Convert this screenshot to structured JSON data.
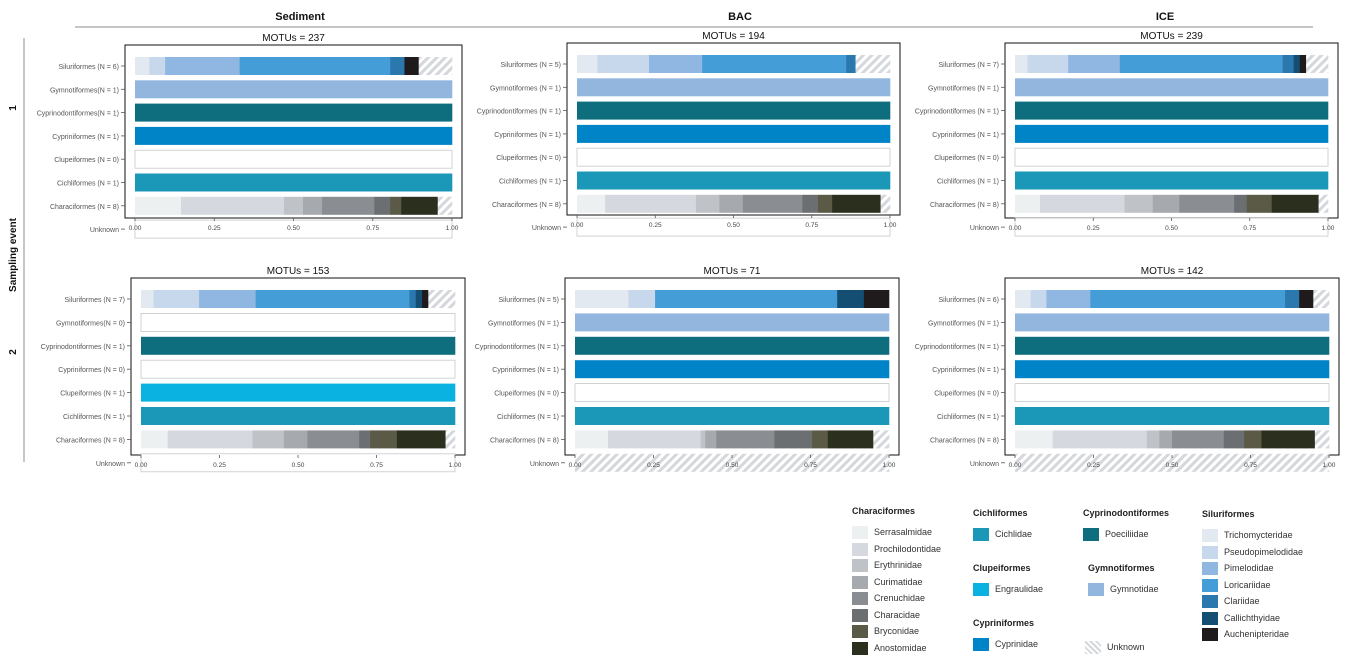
{
  "colors": {
    "Serrasalmidae": "#edf0f1",
    "Prochilodontidae": "#d5d8de",
    "Erythrinidae": "#bfc2c7",
    "Curimatidae": "#a6a9ae",
    "Crenuchidae": "#8a8d91",
    "Characidae": "#6c6f71",
    "Bryconidae": "#5a5a46",
    "Anostomidae": "#2b2f1d",
    "Cichlidae": "#1b98b8",
    "Poeciliidae": "#0e6e7e",
    "Engraulidae": "#0ab2e2",
    "Gymnotidae": "#93b6de",
    "Cyprinidae": "#0084c8",
    "Trichomycteridae": "#e3e9f1",
    "Pseudopimelodidae": "#c7d8ec",
    "Pimelodidae": "#8fb7e2",
    "Loricariidae": "#449dd7",
    "Clariidae": "#2a78ae",
    "Callichthyidae": "#144e72",
    "Auchenipteridae": "#1f1b1c",
    "Unknown": "hatch"
  },
  "chart_data": {
    "type": "bar",
    "orientation": "horizontal",
    "stacked": true,
    "column_headers": [
      "Sediment",
      "BAC",
      "ICE"
    ],
    "row_axis_title": "Sampling event",
    "row_labels": [
      "1",
      "2"
    ],
    "x_ticks": [
      "0.00",
      "0.25",
      "0.50",
      "0.75",
      "1.00"
    ],
    "xlim": [
      0,
      1
    ],
    "panels": [
      {
        "row": "1",
        "column": "Sediment",
        "motu_label": "MOTUs = 237",
        "bars": [
          {
            "label": "Siluriformes (N = 6)",
            "segments": [
              [
                "Trichomycteridae",
                0.045
              ],
              [
                "Pseudopimelodidae",
                0.05
              ],
              [
                "Pimelodidae",
                0.235
              ],
              [
                "Loricariidae",
                0.475
              ],
              [
                "Clariidae",
                0.045
              ],
              [
                "Auchenipteridae",
                0.045
              ],
              [
                "Unknown",
                0.105
              ]
            ]
          },
          {
            "label": "Gymnotiformes(N = 1)",
            "segments": [
              [
                "Gymnotidae",
                1.0
              ]
            ]
          },
          {
            "label": "Cyprinodontiformes(N = 1)",
            "segments": [
              [
                "Poeciliidae",
                1.0
              ]
            ]
          },
          {
            "label": "Cypriniformes (N = 1)",
            "segments": [
              [
                "Cyprinidae",
                1.0
              ]
            ]
          },
          {
            "label": "Clupeiformes (N = 0)",
            "segments": []
          },
          {
            "label": "Cichliformes (N = 1)",
            "segments": [
              [
                "Cichlidae",
                1.0
              ]
            ]
          },
          {
            "label": "Characiformes (N = 8)",
            "segments": [
              [
                "Serrasalmidae",
                0.145
              ],
              [
                "Prochilodontidae",
                0.325
              ],
              [
                "Erythrinidae",
                0.06
              ],
              [
                "Curimatidae",
                0.06
              ],
              [
                "Crenuchidae",
                0.165
              ],
              [
                "Characidae",
                0.05
              ],
              [
                "Bryconidae",
                0.035
              ],
              [
                "Anostomidae",
                0.115
              ],
              [
                "Unknown",
                0.045
              ]
            ]
          },
          {
            "label": "Unknown",
            "segments": []
          }
        ]
      },
      {
        "row": "1",
        "column": "BAC",
        "motu_label": "MOTUs = 194",
        "bars": [
          {
            "label": "Siluriformes (N = 5)",
            "segments": [
              [
                "Trichomycteridae",
                0.065
              ],
              [
                "Pseudopimelodidae",
                0.165
              ],
              [
                "Pimelodidae",
                0.17
              ],
              [
                "Loricariidae",
                0.46
              ],
              [
                "Clariidae",
                0.03
              ],
              [
                "Unknown",
                0.11
              ]
            ]
          },
          {
            "label": "Gymnotiformes (N = 1)",
            "segments": [
              [
                "Gymnotidae",
                1.0
              ]
            ]
          },
          {
            "label": "Cyprinodontiformes (N = 1)",
            "segments": [
              [
                "Poeciliidae",
                1.0
              ]
            ]
          },
          {
            "label": "Cypriniformes (N = 1)",
            "segments": [
              [
                "Cyprinidae",
                1.0
              ]
            ]
          },
          {
            "label": "Clupeiformes (N = 0)",
            "segments": []
          },
          {
            "label": "Cichliformes (N = 1)",
            "segments": [
              [
                "Cichlidae",
                1.0
              ]
            ]
          },
          {
            "label": "Characiformes (N = 8)",
            "segments": [
              [
                "Serrasalmidae",
                0.09
              ],
              [
                "Prochilodontidae",
                0.29
              ],
              [
                "Erythrinidae",
                0.075
              ],
              [
                "Curimatidae",
                0.075
              ],
              [
                "Crenuchidae",
                0.19
              ],
              [
                "Characidae",
                0.05
              ],
              [
                "Bryconidae",
                0.045
              ],
              [
                "Anostomidae",
                0.155
              ],
              [
                "Unknown",
                0.03
              ]
            ]
          },
          {
            "label": "Unknown",
            "segments": []
          }
        ]
      },
      {
        "row": "1",
        "column": "ICE",
        "motu_label": "MOTUs = 239",
        "bars": [
          {
            "label": "Siluriformes (N = 7)",
            "segments": [
              [
                "Trichomycteridae",
                0.04
              ],
              [
                "Pseudopimelodidae",
                0.13
              ],
              [
                "Pimelodidae",
                0.165
              ],
              [
                "Loricariidae",
                0.52
              ],
              [
                "Clariidae",
                0.035
              ],
              [
                "Callichthyidae",
                0.02
              ],
              [
                "Auchenipteridae",
                0.02
              ],
              [
                "Unknown",
                0.07
              ]
            ]
          },
          {
            "label": "Gymnotiformes (N = 1)",
            "segments": [
              [
                "Gymnotidae",
                1.0
              ]
            ]
          },
          {
            "label": "Cyprinodontiformes (N = 1)",
            "segments": [
              [
                "Poeciliidae",
                1.0
              ]
            ]
          },
          {
            "label": "Cypriniformes (N = 1)",
            "segments": [
              [
                "Cyprinidae",
                1.0
              ]
            ]
          },
          {
            "label": "Clupeiformes (N = 0)",
            "segments": []
          },
          {
            "label": "Cichliformes (N = 1)",
            "segments": [
              [
                "Cichlidae",
                1.0
              ]
            ]
          },
          {
            "label": "Characiformes (N = 8)",
            "segments": [
              [
                "Serrasalmidae",
                0.08
              ],
              [
                "Prochilodontidae",
                0.27
              ],
              [
                "Erythrinidae",
                0.09
              ],
              [
                "Curimatidae",
                0.085
              ],
              [
                "Crenuchidae",
                0.175
              ],
              [
                "Characidae",
                0.04
              ],
              [
                "Bryconidae",
                0.08
              ],
              [
                "Anostomidae",
                0.15
              ],
              [
                "Unknown",
                0.03
              ]
            ]
          },
          {
            "label": "Unknown",
            "segments": []
          }
        ]
      },
      {
        "row": "2",
        "column": "Sediment",
        "motu_label": "MOTUs = 153",
        "bars": [
          {
            "label": "Siluriformes (N = 7)",
            "segments": [
              [
                "Trichomycteridae",
                0.04
              ],
              [
                "Pseudopimelodidae",
                0.145
              ],
              [
                "Pimelodidae",
                0.18
              ],
              [
                "Loricariidae",
                0.49
              ],
              [
                "Clariidae",
                0.02
              ],
              [
                "Callichthyidae",
                0.02
              ],
              [
                "Auchenipteridae",
                0.02
              ],
              [
                "Unknown",
                0.085
              ]
            ]
          },
          {
            "label": "Gymnotiformes(N = 0)",
            "segments": []
          },
          {
            "label": "Cyprinodontiformes (N = 1)",
            "segments": [
              [
                "Poeciliidae",
                1.0
              ]
            ]
          },
          {
            "label": "Cypriniformes (N = 0)",
            "segments": []
          },
          {
            "label": "Clupeiformes (N = 1)",
            "segments": [
              [
                "Engraulidae",
                1.0
              ]
            ]
          },
          {
            "label": "Cichliformes (N = 1)",
            "segments": [
              [
                "Cichlidae",
                1.0
              ]
            ]
          },
          {
            "label": "Characiformes (N = 8)",
            "segments": [
              [
                "Serrasalmidae",
                0.085
              ],
              [
                "Prochilodontidae",
                0.27
              ],
              [
                "Erythrinidae",
                0.1
              ],
              [
                "Curimatidae",
                0.075
              ],
              [
                "Crenuchidae",
                0.165
              ],
              [
                "Characidae",
                0.035
              ],
              [
                "Bryconidae",
                0.085
              ],
              [
                "Anostomidae",
                0.155
              ],
              [
                "Unknown",
                0.03
              ]
            ]
          },
          {
            "label": "Unknown",
            "segments": []
          }
        ]
      },
      {
        "row": "2",
        "column": "BAC",
        "motu_label": "MOTUs = 71",
        "bars": [
          {
            "label": "Siluriformes (N = 5)",
            "segments": [
              [
                "Trichomycteridae",
                0.17
              ],
              [
                "Pseudopimelodidae",
                0.085
              ],
              [
                "Pimelodidae",
                0.0
              ],
              [
                "Loricariidae",
                0.58
              ],
              [
                "Clariidae",
                0.0
              ],
              [
                "Callichthyidae",
                0.085
              ],
              [
                "Auchenipteridae",
                0.08
              ]
            ]
          },
          {
            "label": "Gymnotiformes (N = 1)",
            "segments": [
              [
                "Gymnotidae",
                1.0
              ]
            ]
          },
          {
            "label": "Cyprinodontiformes (N = 1)",
            "segments": [
              [
                "Poeciliidae",
                1.0
              ]
            ]
          },
          {
            "label": "Cypriniformes (N = 1)",
            "segments": [
              [
                "Cyprinidae",
                1.0
              ]
            ]
          },
          {
            "label": "Clupeiformes (N = 0)",
            "segments": []
          },
          {
            "label": "Cichliformes (N = 1)",
            "segments": [
              [
                "Cichlidae",
                1.0
              ]
            ]
          },
          {
            "label": "Characiformes (N = 8)",
            "segments": [
              [
                "Serrasalmidae",
                0.105
              ],
              [
                "Prochilodontidae",
                0.295
              ],
              [
                "Erythrinidae",
                0.015
              ],
              [
                "Curimatidae",
                0.035
              ],
              [
                "Crenuchidae",
                0.185
              ],
              [
                "Characidae",
                0.12
              ],
              [
                "Bryconidae",
                0.05
              ],
              [
                "Anostomidae",
                0.145
              ],
              [
                "Unknown",
                0.05
              ]
            ]
          },
          {
            "label": "Unknown",
            "segments": [
              [
                "Unknown",
                1.0
              ]
            ]
          }
        ]
      },
      {
        "row": "2",
        "column": "ICE",
        "motu_label": "MOTUs = 142",
        "bars": [
          {
            "label": "Siluriformes (N = 6)",
            "segments": [
              [
                "Trichomycteridae",
                0.05
              ],
              [
                "Pseudopimelodidae",
                0.05
              ],
              [
                "Pimelodidae",
                0.14
              ],
              [
                "Loricariidae",
                0.62
              ],
              [
                "Clariidae",
                0.045
              ],
              [
                "Auchenipteridae",
                0.045
              ],
              [
                "Unknown",
                0.05
              ]
            ]
          },
          {
            "label": "Gymnotiformes (N = 1)",
            "segments": [
              [
                "Gymnotidae",
                1.0
              ]
            ]
          },
          {
            "label": "Cyprinodontiformes (N = 1)",
            "segments": [
              [
                "Poeciliidae",
                1.0
              ]
            ]
          },
          {
            "label": "Cypriniformes (N = 1)",
            "segments": [
              [
                "Cyprinidae",
                1.0
              ]
            ]
          },
          {
            "label": "Clupeiformes (N = 0)",
            "segments": []
          },
          {
            "label": "Cichliformes (N = 1)",
            "segments": [
              [
                "Cichlidae",
                1.0
              ]
            ]
          },
          {
            "label": "Characiformes (N = 8)",
            "segments": [
              [
                "Serrasalmidae",
                0.12
              ],
              [
                "Prochilodontidae",
                0.3
              ],
              [
                "Erythrinidae",
                0.04
              ],
              [
                "Curimatidae",
                0.04
              ],
              [
                "Crenuchidae",
                0.165
              ],
              [
                "Characidae",
                0.065
              ],
              [
                "Bryconidae",
                0.055
              ],
              [
                "Anostomidae",
                0.17
              ],
              [
                "Unknown",
                0.045
              ]
            ]
          },
          {
            "label": "Unknown",
            "segments": [
              [
                "Unknown",
                1.0
              ]
            ]
          }
        ]
      }
    ]
  },
  "legend": {
    "groups": [
      {
        "title": "Characiformes",
        "items": [
          "Serrasalmidae",
          "Prochilodontidae",
          "Erythrinidae",
          "Curimatidae",
          "Crenuchidae",
          "Characidae",
          "Bryconidae",
          "Anostomidae"
        ]
      },
      {
        "title": "Cichliformes",
        "items": [
          "Cichlidae"
        ]
      },
      {
        "title": "Clupeiformes",
        "items": [
          "Engraulidae"
        ]
      },
      {
        "title": "Cypriniformes",
        "items": [
          "Cyprinidae"
        ]
      },
      {
        "title": "Cyprinodontiformes",
        "items": [
          "Poeciliidae"
        ]
      },
      {
        "title": "Gymnotiformes",
        "items": [
          "Gymnotidae"
        ]
      },
      {
        "title": "",
        "items": [
          "Unknown"
        ]
      },
      {
        "title": "Siluriformes",
        "items": [
          "Trichomycteridae",
          "Pseudopimelodidae",
          "Pimelodidae",
          "Loricariidae",
          "Clariidae",
          "Callichthyidae",
          "Auchenipteridae"
        ]
      }
    ]
  }
}
